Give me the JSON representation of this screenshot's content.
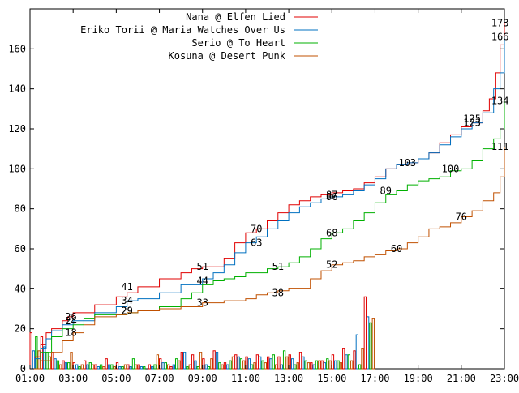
{
  "chart_data": {
    "type": "line",
    "title": "",
    "xlabel": "",
    "ylabel": "",
    "xlim": [
      1,
      23
    ],
    "ylim": [
      0,
      180
    ],
    "x_ticks": [
      "01:00",
      "03:00",
      "05:00",
      "07:00",
      "09:00",
      "11:00",
      "13:00",
      "15:00",
      "17:00",
      "19:00",
      "21:00",
      "23:00"
    ],
    "x_tick_values": [
      1,
      3,
      5,
      7,
      9,
      11,
      13,
      15,
      17,
      19,
      21,
      23
    ],
    "y_ticks": [
      0,
      20,
      40,
      60,
      80,
      100,
      120,
      140,
      160
    ],
    "legend_position": "top-center",
    "series": [
      {
        "name": "Nana @ Elfen Lied",
        "color": "#e00000",
        "points": [
          [
            1,
            0
          ],
          [
            1.25,
            6
          ],
          [
            1.5,
            12
          ],
          [
            1.75,
            18
          ],
          [
            2,
            20
          ],
          [
            2.5,
            24
          ],
          [
            2.75,
            26
          ],
          [
            3,
            28
          ],
          [
            4,
            32
          ],
          [
            5,
            36
          ],
          [
            5.5,
            38
          ],
          [
            6,
            41
          ],
          [
            7,
            45
          ],
          [
            8,
            48
          ],
          [
            8.5,
            50
          ],
          [
            9,
            51
          ],
          [
            10,
            55
          ],
          [
            10.5,
            63
          ],
          [
            11,
            68
          ],
          [
            11.5,
            70
          ],
          [
            12,
            74
          ],
          [
            12.5,
            78
          ],
          [
            13,
            82
          ],
          [
            13.5,
            84
          ],
          [
            14,
            86
          ],
          [
            14.5,
            87
          ],
          [
            15,
            88
          ],
          [
            15.5,
            89
          ],
          [
            16,
            90
          ],
          [
            16.5,
            93
          ],
          [
            17,
            96
          ],
          [
            17.5,
            100
          ],
          [
            18,
            102
          ],
          [
            18.5,
            103
          ],
          [
            19,
            105
          ],
          [
            19.5,
            108
          ],
          [
            20,
            113
          ],
          [
            20.5,
            117
          ],
          [
            21,
            121
          ],
          [
            21.5,
            123
          ],
          [
            22,
            129
          ],
          [
            22.3,
            135
          ],
          [
            22.6,
            148
          ],
          [
            22.8,
            162
          ],
          [
            23,
            173
          ]
        ],
        "labels": [
          [
            2.9,
            26,
            "26"
          ],
          [
            5.5,
            41,
            "41"
          ],
          [
            9,
            51,
            "51"
          ],
          [
            11.5,
            70,
            "70"
          ],
          [
            15,
            87,
            "87"
          ],
          [
            21.5,
            125,
            "125"
          ],
          [
            22.8,
            173,
            "173"
          ]
        ]
      },
      {
        "name": "Eriko Torii @ Maria Watches Over Us",
        "color": "#0070c0",
        "points": [
          [
            1,
            0
          ],
          [
            1.25,
            5
          ],
          [
            1.5,
            10
          ],
          [
            1.75,
            15
          ],
          [
            2,
            19
          ],
          [
            2.5,
            22
          ],
          [
            3,
            24
          ],
          [
            4,
            28
          ],
          [
            5,
            31
          ],
          [
            5.5,
            34
          ],
          [
            6,
            35
          ],
          [
            7,
            38
          ],
          [
            8,
            42
          ],
          [
            9,
            45
          ],
          [
            9.5,
            48
          ],
          [
            10,
            52
          ],
          [
            10.5,
            58
          ],
          [
            11,
            63
          ],
          [
            11.5,
            66
          ],
          [
            12,
            70
          ],
          [
            12.5,
            74
          ],
          [
            13,
            78
          ],
          [
            13.5,
            81
          ],
          [
            14,
            83
          ],
          [
            14.5,
            85
          ],
          [
            15,
            86
          ],
          [
            15.5,
            87
          ],
          [
            16,
            89
          ],
          [
            16.5,
            92
          ],
          [
            17,
            95
          ],
          [
            17.5,
            100
          ],
          [
            18,
            102
          ],
          [
            18.5,
            103
          ],
          [
            19,
            105
          ],
          [
            19.5,
            108
          ],
          [
            20,
            112
          ],
          [
            20.5,
            116
          ],
          [
            21,
            120
          ],
          [
            21.5,
            123
          ],
          [
            22,
            128
          ],
          [
            22.5,
            140
          ],
          [
            22.8,
            148
          ],
          [
            23,
            166
          ]
        ],
        "labels": [
          [
            2.9,
            24,
            "24"
          ],
          [
            5.5,
            34,
            "34"
          ],
          [
            11.5,
            63,
            "63"
          ],
          [
            15,
            86,
            "86"
          ],
          [
            18.5,
            103,
            "103"
          ],
          [
            21.5,
            123,
            "123"
          ],
          [
            22.8,
            166,
            "166"
          ]
        ]
      },
      {
        "name": "Serio @ To Heart",
        "color": "#00b000",
        "points": [
          [
            1,
            0
          ],
          [
            1.5,
            8
          ],
          [
            2,
            16
          ],
          [
            2.5,
            20
          ],
          [
            3,
            22
          ],
          [
            3.5,
            25
          ],
          [
            4,
            27
          ],
          [
            5,
            27
          ],
          [
            5.5,
            28
          ],
          [
            6,
            29
          ],
          [
            7,
            31
          ],
          [
            8,
            35
          ],
          [
            8.5,
            38
          ],
          [
            9,
            42
          ],
          [
            9.5,
            44
          ],
          [
            10,
            45
          ],
          [
            10.5,
            46
          ],
          [
            11,
            48
          ],
          [
            12,
            50
          ],
          [
            12.5,
            51
          ],
          [
            13,
            53
          ],
          [
            13.5,
            56
          ],
          [
            14,
            60
          ],
          [
            14.5,
            65
          ],
          [
            15,
            68
          ],
          [
            15.5,
            70
          ],
          [
            16,
            74
          ],
          [
            16.5,
            78
          ],
          [
            17,
            83
          ],
          [
            17.5,
            87
          ],
          [
            18,
            89
          ],
          [
            18.5,
            92
          ],
          [
            19,
            94
          ],
          [
            19.5,
            95
          ],
          [
            20,
            96
          ],
          [
            20.5,
            99
          ],
          [
            21,
            100
          ],
          [
            21.5,
            104
          ],
          [
            22,
            110
          ],
          [
            22.5,
            115
          ],
          [
            22.8,
            120
          ],
          [
            23,
            134
          ]
        ],
        "labels": [
          [
            5.5,
            29,
            "29"
          ],
          [
            9,
            44,
            "44"
          ],
          [
            12.5,
            51,
            "51"
          ],
          [
            15,
            68,
            "68"
          ],
          [
            17.5,
            89,
            "89"
          ],
          [
            20.5,
            100,
            "100"
          ],
          [
            22.8,
            134,
            "134"
          ]
        ]
      },
      {
        "name": "Kosuna @ Desert Punk",
        "color": "#c05000",
        "points": [
          [
            1,
            0
          ],
          [
            1.5,
            4
          ],
          [
            2,
            8
          ],
          [
            2.5,
            14
          ],
          [
            3,
            18
          ],
          [
            3.5,
            22
          ],
          [
            4,
            26
          ],
          [
            5,
            27
          ],
          [
            5.5,
            28
          ],
          [
            6,
            29
          ],
          [
            7,
            30
          ],
          [
            8,
            31
          ],
          [
            9,
            33
          ],
          [
            10,
            34
          ],
          [
            11,
            35
          ],
          [
            11.5,
            37
          ],
          [
            12,
            38
          ],
          [
            12.5,
            39
          ],
          [
            13,
            40
          ],
          [
            14,
            45
          ],
          [
            14.5,
            49
          ],
          [
            15,
            52
          ],
          [
            15.5,
            53
          ],
          [
            16,
            54
          ],
          [
            16.5,
            56
          ],
          [
            17,
            57
          ],
          [
            17.5,
            59
          ],
          [
            18,
            60
          ],
          [
            18.5,
            63
          ],
          [
            19,
            66
          ],
          [
            19.5,
            70
          ],
          [
            20,
            71
          ],
          [
            20.5,
            73
          ],
          [
            21,
            76
          ],
          [
            21.5,
            79
          ],
          [
            22,
            84
          ],
          [
            22.5,
            88
          ],
          [
            22.8,
            96
          ],
          [
            23,
            111
          ]
        ],
        "labels": [
          [
            2.9,
            18,
            "18"
          ],
          [
            5.5,
            29,
            "29"
          ],
          [
            9,
            33,
            "33"
          ],
          [
            12.5,
            38,
            "38"
          ],
          [
            15,
            52,
            "52"
          ],
          [
            18,
            60,
            "60"
          ],
          [
            21,
            76,
            "76"
          ],
          [
            22.8,
            111,
            "111"
          ]
        ]
      }
    ],
    "bars": {
      "interval_hours": 0.5,
      "series_order": [
        "Nana @ Elfen Lied",
        "Eriko Torii @ Maria Watches Over Us",
        "Serio @ To Heart",
        "Kosuna @ Desert Punk"
      ],
      "values": [
        [
          18,
          9,
          16,
          9
        ],
        [
          16,
          11,
          8,
          6
        ],
        [
          8,
          5,
          4,
          2
        ],
        [
          4,
          3,
          3,
          8
        ],
        [
          3,
          2,
          1,
          2
        ],
        [
          4,
          2,
          3,
          2
        ],
        [
          2,
          1,
          2,
          1
        ],
        [
          5,
          2,
          2,
          1
        ],
        [
          3,
          1,
          1,
          2
        ],
        [
          2,
          1,
          5,
          2
        ],
        [
          2,
          1,
          1,
          0
        ],
        [
          2,
          1,
          2,
          7
        ],
        [
          5,
          3,
          3,
          2
        ],
        [
          1,
          2,
          5,
          4
        ],
        [
          8,
          8,
          1,
          2
        ],
        [
          7,
          4,
          1,
          8
        ],
        [
          5,
          2,
          1,
          5
        ],
        [
          9,
          8,
          3,
          2
        ],
        [
          3,
          2,
          4,
          6
        ],
        [
          7,
          6,
          5,
          4
        ],
        [
          6,
          5,
          2,
          3
        ],
        [
          7,
          6,
          4,
          3
        ],
        [
          6,
          5,
          7,
          2
        ],
        [
          6,
          2,
          9,
          6
        ],
        [
          7,
          5,
          2,
          3
        ],
        [
          8,
          6,
          4,
          3
        ],
        [
          3,
          2,
          4,
          4
        ],
        [
          4,
          3,
          5,
          4
        ],
        [
          7,
          4,
          4,
          3
        ],
        [
          10,
          7,
          7,
          4
        ],
        [
          9,
          17,
          2,
          10
        ],
        [
          36,
          26,
          23,
          25
        ]
      ]
    }
  }
}
